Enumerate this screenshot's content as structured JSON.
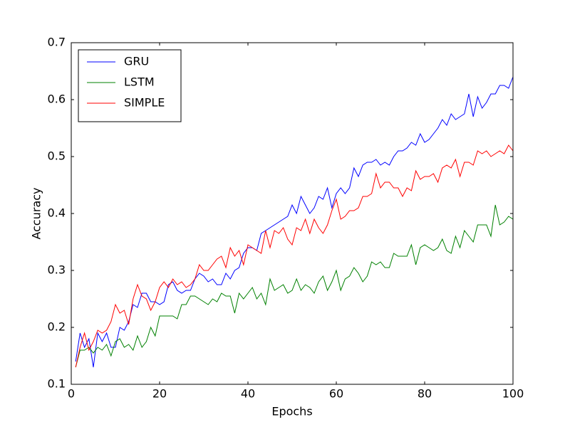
{
  "chart_data": {
    "type": "line",
    "xlabel": "Epochs",
    "ylabel": "Accuracy",
    "x": [
      1,
      2,
      3,
      4,
      5,
      6,
      7,
      8,
      9,
      10,
      11,
      12,
      13,
      14,
      15,
      16,
      17,
      18,
      19,
      20,
      21,
      22,
      23,
      24,
      25,
      26,
      27,
      28,
      29,
      30,
      31,
      32,
      33,
      34,
      35,
      36,
      37,
      38,
      39,
      40,
      41,
      42,
      43,
      44,
      45,
      46,
      47,
      48,
      49,
      50,
      51,
      52,
      53,
      54,
      55,
      56,
      57,
      58,
      59,
      60,
      61,
      62,
      63,
      64,
      65,
      66,
      67,
      68,
      69,
      70,
      71,
      72,
      73,
      74,
      75,
      76,
      77,
      78,
      79,
      80,
      81,
      82,
      83,
      84,
      85,
      86,
      87,
      88,
      89,
      90,
      91,
      92,
      93,
      94,
      95,
      96,
      97,
      98,
      99,
      100
    ],
    "series": [
      {
        "name": "GRU",
        "color": "#0000ff",
        "values": [
          0.14,
          0.19,
          0.165,
          0.18,
          0.13,
          0.19,
          0.175,
          0.19,
          0.165,
          0.165,
          0.2,
          0.195,
          0.21,
          0.24,
          0.235,
          0.26,
          0.26,
          0.245,
          0.245,
          0.24,
          0.245,
          0.275,
          0.28,
          0.265,
          0.26,
          0.265,
          0.265,
          0.285,
          0.295,
          0.29,
          0.28,
          0.285,
          0.275,
          0.275,
          0.295,
          0.285,
          0.3,
          0.305,
          0.33,
          0.34,
          0.34,
          0.335,
          0.365,
          0.37,
          0.375,
          0.38,
          0.385,
          0.39,
          0.395,
          0.415,
          0.4,
          0.43,
          0.415,
          0.4,
          0.41,
          0.43,
          0.425,
          0.445,
          0.41,
          0.435,
          0.445,
          0.435,
          0.445,
          0.48,
          0.465,
          0.485,
          0.49,
          0.49,
          0.495,
          0.485,
          0.49,
          0.485,
          0.5,
          0.51,
          0.51,
          0.515,
          0.525,
          0.52,
          0.54,
          0.525,
          0.53,
          0.54,
          0.55,
          0.565,
          0.555,
          0.575,
          0.565,
          0.57,
          0.575,
          0.61,
          0.57,
          0.605,
          0.585,
          0.595,
          0.61,
          0.61,
          0.625,
          0.625,
          0.62,
          0.64
        ]
      },
      {
        "name": "LSTM",
        "color": "#008000",
        "values": [
          0.13,
          0.16,
          0.16,
          0.165,
          0.155,
          0.165,
          0.16,
          0.17,
          0.15,
          0.175,
          0.18,
          0.165,
          0.17,
          0.16,
          0.185,
          0.165,
          0.175,
          0.2,
          0.185,
          0.22,
          0.22,
          0.22,
          0.22,
          0.215,
          0.24,
          0.24,
          0.255,
          0.255,
          0.25,
          0.245,
          0.24,
          0.25,
          0.245,
          0.26,
          0.255,
          0.255,
          0.225,
          0.26,
          0.25,
          0.26,
          0.27,
          0.25,
          0.26,
          0.24,
          0.285,
          0.265,
          0.27,
          0.275,
          0.26,
          0.265,
          0.285,
          0.265,
          0.275,
          0.27,
          0.26,
          0.28,
          0.29,
          0.265,
          0.28,
          0.3,
          0.265,
          0.285,
          0.29,
          0.305,
          0.295,
          0.28,
          0.29,
          0.315,
          0.31,
          0.315,
          0.305,
          0.305,
          0.33,
          0.325,
          0.325,
          0.325,
          0.345,
          0.31,
          0.34,
          0.345,
          0.34,
          0.335,
          0.34,
          0.355,
          0.335,
          0.33,
          0.36,
          0.34,
          0.37,
          0.36,
          0.35,
          0.38,
          0.38,
          0.38,
          0.36,
          0.415,
          0.38,
          0.385,
          0.395,
          0.39
        ]
      },
      {
        "name": "SIMPLE",
        "color": "#ff0000",
        "values": [
          0.13,
          0.165,
          0.19,
          0.16,
          0.175,
          0.195,
          0.19,
          0.195,
          0.21,
          0.24,
          0.225,
          0.23,
          0.205,
          0.25,
          0.275,
          0.255,
          0.25,
          0.23,
          0.245,
          0.27,
          0.28,
          0.27,
          0.285,
          0.275,
          0.28,
          0.27,
          0.275,
          0.285,
          0.31,
          0.3,
          0.3,
          0.31,
          0.32,
          0.325,
          0.305,
          0.34,
          0.325,
          0.335,
          0.31,
          0.345,
          0.34,
          0.335,
          0.33,
          0.37,
          0.34,
          0.37,
          0.365,
          0.375,
          0.355,
          0.345,
          0.375,
          0.37,
          0.39,
          0.365,
          0.39,
          0.375,
          0.365,
          0.38,
          0.405,
          0.425,
          0.39,
          0.395,
          0.405,
          0.405,
          0.41,
          0.43,
          0.43,
          0.435,
          0.47,
          0.445,
          0.455,
          0.455,
          0.445,
          0.445,
          0.43,
          0.445,
          0.44,
          0.475,
          0.46,
          0.465,
          0.465,
          0.47,
          0.455,
          0.48,
          0.485,
          0.48,
          0.495,
          0.465,
          0.49,
          0.49,
          0.485,
          0.51,
          0.505,
          0.51,
          0.5,
          0.505,
          0.51,
          0.505,
          0.52,
          0.51
        ]
      }
    ],
    "xlim": [
      0,
      100
    ],
    "xticks": [
      0,
      20,
      40,
      60,
      80,
      100
    ],
    "ylim": [
      0.1,
      0.7
    ],
    "yticks": [
      0.1,
      0.2,
      0.3,
      0.4,
      0.5,
      0.6,
      0.7
    ],
    "grid": false,
    "legend": "upper left"
  }
}
